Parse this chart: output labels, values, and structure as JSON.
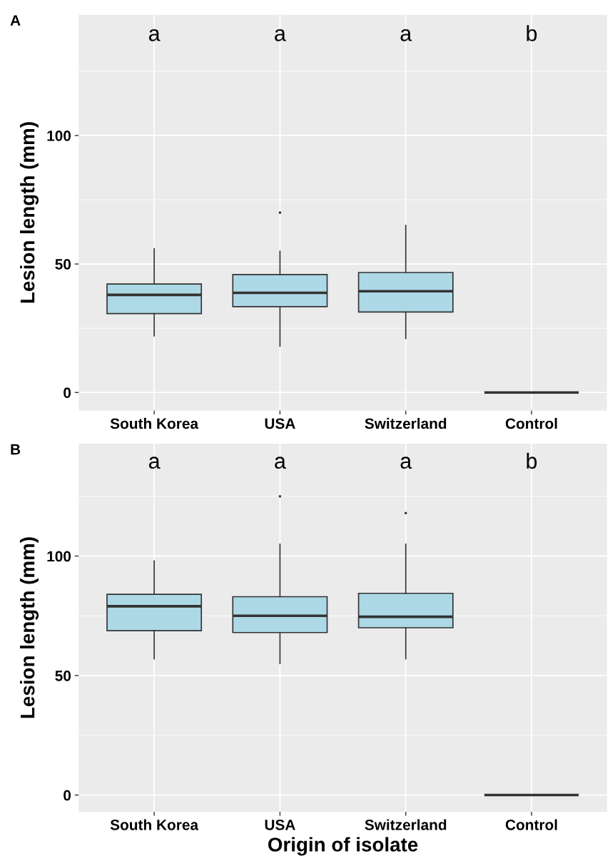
{
  "chart_data": [
    {
      "type": "box",
      "title": "A",
      "ylabel": "Lesion length (mm)",
      "categories": [
        "South Korea",
        "USA",
        "Switzerland",
        "Control"
      ],
      "color": "#add8e6",
      "boxes": [
        {
          "low": 22,
          "q1": 30.7,
          "median": 38,
          "q3": 42.2,
          "high": 56
        },
        {
          "low": 18,
          "q1": 33.4,
          "median": 38.8,
          "q3": 45.9,
          "high": 55,
          "outliers": [
            70
          ]
        },
        {
          "low": 21,
          "q1": 31.3,
          "median": 39.4,
          "q3": 46.7,
          "high": 65
        },
        {
          "low": 0,
          "q1": 0,
          "median": 0,
          "q3": 0,
          "high": 0
        }
      ],
      "ylim": [
        -7,
        147
      ],
      "yticks": [
        0,
        50,
        100
      ],
      "grid": true,
      "annotations": [
        "a",
        "a",
        "a",
        "b"
      ]
    },
    {
      "type": "box",
      "title": "B",
      "ylabel": "Lesion length (mm)",
      "xlabel": "Origin of isolate",
      "categories": [
        "South Korea",
        "USA",
        "Switzerland",
        "Control"
      ],
      "color": "#add8e6",
      "boxes": [
        {
          "low": 57,
          "q1": 68.8,
          "median": 79,
          "q3": 84,
          "high": 98
        },
        {
          "low": 55,
          "q1": 68,
          "median": 75,
          "q3": 83,
          "high": 105,
          "outliers": [
            125
          ]
        },
        {
          "low": 57,
          "q1": 70,
          "median": 74.6,
          "q3": 84.4,
          "high": 105,
          "outliers": [
            118
          ]
        },
        {
          "low": 0,
          "q1": 0,
          "median": 0,
          "q3": 0,
          "high": 0
        }
      ],
      "ylim": [
        -7,
        147
      ],
      "yticks": [
        0,
        50,
        100
      ],
      "grid": true,
      "annotations": [
        "a",
        "a",
        "a",
        "b"
      ]
    }
  ]
}
